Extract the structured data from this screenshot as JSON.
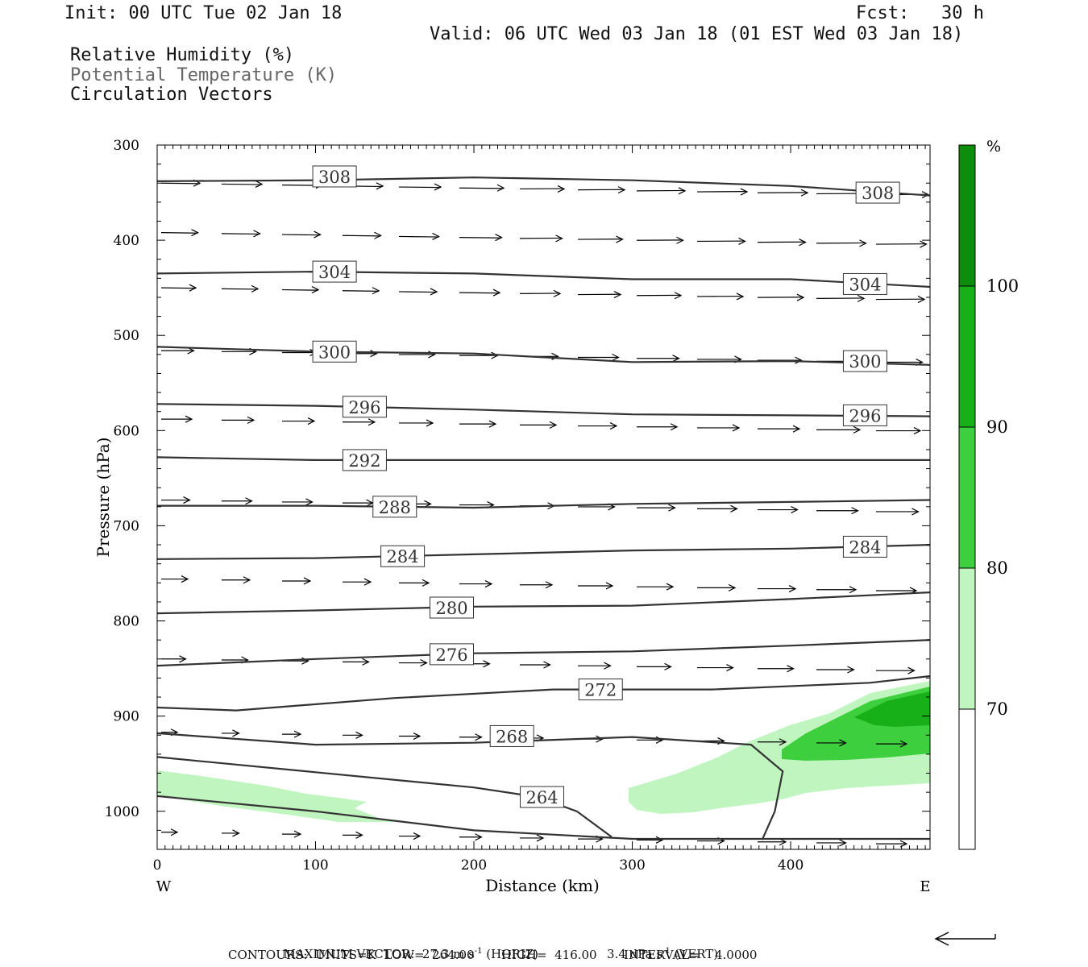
{
  "header": {
    "init": "Init: 00 UTC Tue 02 Jan 18",
    "fcst": "Fcst:   30 h",
    "valid": "Valid: 06 UTC Wed 03 Jan 18 (01 EST Wed 03 Jan 18)",
    "fields": [
      "Relative Humidity (%)",
      "Potential Temperature (K)",
      "Circulation Vectors"
    ]
  },
  "chart_data": {
    "type": "cross-section",
    "xlabel": "Distance (km)",
    "ylabel": "Pressure (hPa)",
    "xlim": [
      0,
      488
    ],
    "ylim": [
      1040,
      300
    ],
    "x_ticks": [
      0,
      100,
      200,
      300,
      400
    ],
    "y_ticks": [
      300,
      400,
      500,
      600,
      700,
      800,
      900,
      1000
    ],
    "x_end_labels": {
      "left": "W",
      "right": "E"
    },
    "theta_contours": [
      {
        "label": "308",
        "points": [
          [
            0,
            338
          ],
          [
            100,
            337
          ],
          [
            200,
            334
          ],
          [
            300,
            337
          ],
          [
            400,
            343
          ],
          [
            488,
            353
          ]
        ],
        "label_at": [
          [
            112,
            333
          ],
          [
            455,
            350
          ]
        ]
      },
      {
        "label": "304",
        "points": [
          [
            0,
            435
          ],
          [
            100,
            433
          ],
          [
            200,
            435
          ],
          [
            300,
            441
          ],
          [
            400,
            441
          ],
          [
            488,
            449
          ]
        ],
        "label_at": [
          [
            112,
            433
          ],
          [
            447,
            446
          ]
        ]
      },
      {
        "label": "300",
        "points": [
          [
            0,
            512
          ],
          [
            100,
            517
          ],
          [
            200,
            519
          ],
          [
            300,
            528
          ],
          [
            400,
            527
          ],
          [
            488,
            531
          ]
        ],
        "label_at": [
          [
            112,
            517
          ],
          [
            447,
            527
          ]
        ]
      },
      {
        "label": "296",
        "points": [
          [
            0,
            572
          ],
          [
            100,
            574
          ],
          [
            200,
            578
          ],
          [
            300,
            583
          ],
          [
            400,
            584
          ],
          [
            488,
            585
          ]
        ],
        "label_at": [
          [
            131,
            575
          ],
          [
            447,
            584
          ]
        ]
      },
      {
        "label": "292",
        "points": [
          [
            0,
            628
          ],
          [
            100,
            631
          ],
          [
            200,
            631
          ],
          [
            300,
            631
          ],
          [
            400,
            631
          ],
          [
            488,
            631
          ]
        ],
        "label_at": [
          [
            131,
            631
          ]
        ]
      },
      {
        "label": "288",
        "points": [
          [
            0,
            679
          ],
          [
            100,
            679
          ],
          [
            200,
            681
          ],
          [
            300,
            677
          ],
          [
            400,
            675
          ],
          [
            488,
            673
          ]
        ],
        "label_at": [
          [
            150,
            680
          ]
        ]
      },
      {
        "label": "284",
        "points": [
          [
            0,
            735
          ],
          [
            100,
            734
          ],
          [
            200,
            730
          ],
          [
            300,
            726
          ],
          [
            400,
            724
          ],
          [
            488,
            720
          ]
        ],
        "label_at": [
          [
            155,
            732
          ],
          [
            447,
            722
          ]
        ]
      },
      {
        "label": "280",
        "points": [
          [
            0,
            792
          ],
          [
            100,
            789
          ],
          [
            200,
            785
          ],
          [
            300,
            784
          ],
          [
            400,
            777
          ],
          [
            488,
            770
          ]
        ],
        "label_at": [
          [
            186,
            786
          ]
        ]
      },
      {
        "label": "276",
        "points": [
          [
            0,
            847
          ],
          [
            100,
            840
          ],
          [
            200,
            834
          ],
          [
            300,
            832
          ],
          [
            400,
            826
          ],
          [
            488,
            820
          ]
        ],
        "label_at": [
          [
            186,
            835
          ]
        ]
      },
      {
        "label": "272",
        "points": [
          [
            0,
            891
          ],
          [
            50,
            894
          ],
          [
            150,
            881
          ],
          [
            250,
            872
          ],
          [
            350,
            872
          ],
          [
            450,
            865
          ],
          [
            488,
            858
          ]
        ],
        "label_at": [
          [
            280,
            872
          ]
        ]
      },
      {
        "label": "268",
        "points": [
          [
            0,
            918
          ],
          [
            100,
            930
          ],
          [
            200,
            928
          ],
          [
            300,
            922
          ],
          [
            375,
            930
          ],
          [
            395,
            958
          ],
          [
            390,
            1000
          ],
          [
            382,
            1030
          ]
        ],
        "label_at": [
          [
            224,
            921
          ]
        ]
      },
      {
        "label": "264",
        "points": [
          [
            0,
            943
          ],
          [
            100,
            959
          ],
          [
            200,
            975
          ],
          [
            240,
            985
          ],
          [
            265,
            1000
          ],
          [
            287,
            1027
          ]
        ],
        "label_at": [
          [
            243,
            985
          ]
        ]
      },
      {
        "label": "",
        "points": [
          [
            0,
            984
          ],
          [
            100,
            1000
          ],
          [
            200,
            1020
          ],
          [
            300,
            1029
          ],
          [
            488,
            1029
          ]
        ],
        "label_at": []
      }
    ],
    "rh_shading": [
      {
        "level": "70-80",
        "color": "#c0f5c0"
      },
      {
        "level": "80-90",
        "color": "#3ecf3e"
      },
      {
        "level": "90-100",
        "color": "#18b018"
      }
    ],
    "colorbar": {
      "unit": "%",
      "ticks": [
        "70",
        "80",
        "90",
        "100"
      ],
      "colors": [
        "#ffffff",
        "#c0f5c0",
        "#3ecf3e",
        "#18b018",
        "#0c8e0c"
      ]
    },
    "vectors_note": "Circulation vectors pointing east (W to E flow) throughout the section"
  },
  "footer": {
    "line1a": "MAXIMUM VECTOR:  27.3 m s",
    "line1b": "-1",
    "line1c": " (HORIZ)",
    "line1d": "3.4 dPa s",
    "line1e": "-1",
    "line1f": " (VERT)",
    "line2": "CONTOURS:  UNITS=K  LOW=  264.00       HIGH=  416.00       INTERVAL=    4.0000"
  }
}
